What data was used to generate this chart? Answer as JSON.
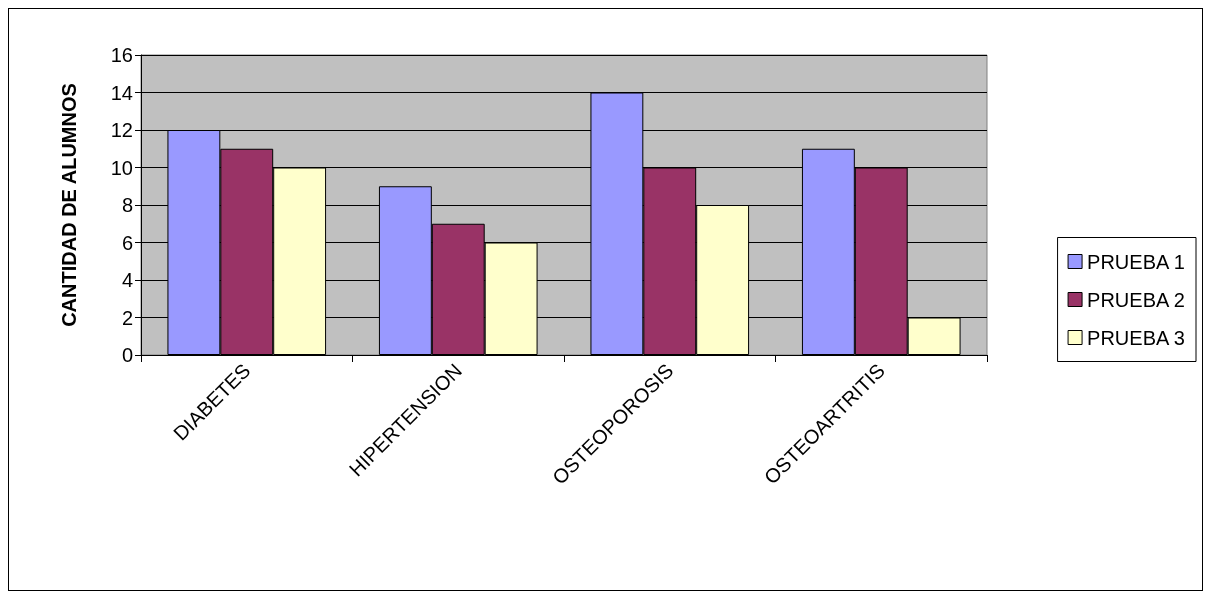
{
  "chart_data": {
    "type": "bar",
    "ylabel": "CANTIDAD DE ALUMNOS",
    "categories": [
      "DIABETES",
      "HIPERTENSION",
      "OSTEOPOROSIS",
      "OSTEOARTRITIS"
    ],
    "series": [
      {
        "name": "PRUEBA 1",
        "color": "#9999ff",
        "values": [
          12,
          9,
          14,
          11
        ]
      },
      {
        "name": "PRUEBA 2",
        "color": "#993366",
        "values": [
          11,
          7,
          10,
          10
        ]
      },
      {
        "name": "PRUEBA 3",
        "color": "#ffffcc",
        "values": [
          10,
          6,
          8,
          2
        ]
      }
    ],
    "ylim": [
      0,
      16
    ],
    "yticks": [
      0,
      2,
      4,
      6,
      8,
      10,
      12,
      14,
      16
    ],
    "grid": "y",
    "legend": "right"
  }
}
